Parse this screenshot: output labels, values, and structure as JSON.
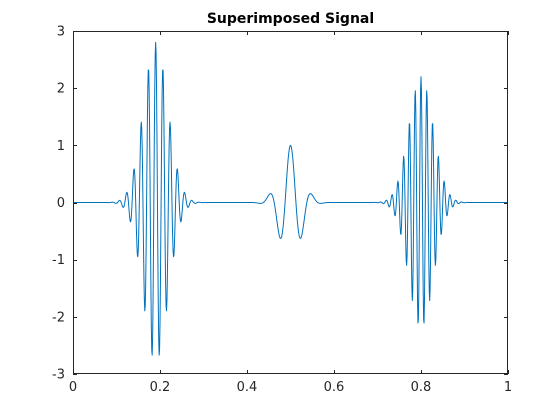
{
  "chart_data": {
    "type": "line",
    "title": "Superimposed Signal",
    "xlabel": "",
    "ylabel": "",
    "xlim": [
      0,
      1
    ],
    "ylim": [
      -3,
      3
    ],
    "xticks": [
      0,
      0.2,
      0.4,
      0.6,
      0.8,
      1
    ],
    "xtick_labels": [
      "0",
      "0.2",
      "0.4",
      "0.6",
      "0.8",
      "1"
    ],
    "yticks": [
      -3,
      -2,
      -1,
      0,
      1,
      2,
      3
    ],
    "ytick_labels": [
      "-3",
      "-2",
      "-1",
      "0",
      "1",
      "2",
      "3"
    ],
    "grid": false,
    "box": true,
    "series": [
      {
        "color": "#0072BD",
        "components": [
          {
            "kind": "gaussian-burst",
            "amplitude": 2.8,
            "center": 0.19,
            "width": 0.04,
            "frequency": 60
          },
          {
            "kind": "gaussian-burst",
            "amplitude": 1.0,
            "center": 0.5,
            "width": 0.035,
            "frequency": 20
          },
          {
            "kind": "gaussian-burst",
            "amplitude": 2.2,
            "center": 0.8,
            "width": 0.04,
            "frequency": 75
          }
        ],
        "samples": 1000
      }
    ]
  }
}
